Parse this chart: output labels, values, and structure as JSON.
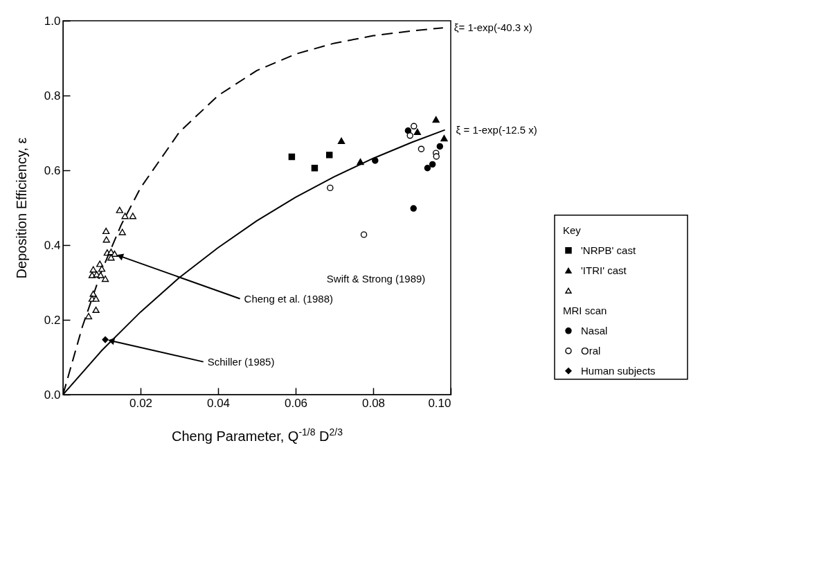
{
  "chart_data": {
    "type": "scatter",
    "xlabel": "Cheng Parameter,  Q$^{-1/8}$  D$^{2/3}$",
    "ylabel": "Deposition  Efficiency, ε",
    "legend_title": "Key",
    "xlim": [
      0,
      0.1
    ],
    "xticks": [
      0.02,
      0.04,
      0.06,
      0.08,
      {
        "value": 0.1,
        "label": "0.10"
      }
    ],
    "ylim": [
      0,
      1.0
    ],
    "yticks": [
      {
        "value": 0,
        "label": "0.0"
      },
      0.2,
      0.4,
      0.6,
      0.8,
      {
        "value": 1.0,
        "label": "1.0"
      }
    ],
    "grid": false,
    "legend": "right",
    "series": [
      {
        "name": "ξ= 1-exp(-40.3 x)",
        "type": "line",
        "color": "#000000",
        "line_style": "dashed",
        "marker": "none",
        "x": [
          0,
          0.005,
          0.01,
          0.015,
          0.02,
          0.03,
          0.04,
          0.05,
          0.06,
          0.07,
          0.08,
          0.09,
          0.098
        ],
        "values": [
          0,
          0.182,
          0.332,
          0.454,
          0.553,
          0.702,
          0.8,
          0.867,
          0.911,
          0.94,
          0.96,
          0.973,
          0.981
        ]
      },
      {
        "name": "ξ = 1-exp(-12.5 x)",
        "type": "line",
        "color": "#000000",
        "line_style": "solid",
        "marker": "none",
        "x": [
          0,
          0.01,
          0.02,
          0.03,
          0.04,
          0.05,
          0.06,
          0.07,
          0.08,
          0.09,
          0.0985
        ],
        "values": [
          0,
          0.118,
          0.221,
          0.313,
          0.393,
          0.465,
          0.528,
          0.583,
          0.632,
          0.675,
          0.708
        ]
      },
      {
        "name": "'NRPB' cast",
        "color": "#000000",
        "marker": "square",
        "x": [
          0.059,
          0.0687,
          0.0649
        ],
        "values": [
          0.636,
          0.641,
          0.606
        ]
      },
      {
        "name": "'ITRI' cast",
        "color": "#000000",
        "marker": "triangle",
        "x": [
          0.0718,
          0.0767,
          0.0962,
          0.0914,
          0.0983
        ],
        "values": [
          0.679,
          0.623,
          0.736,
          0.703,
          0.686
        ]
      },
      {
        "color": "#ffffff",
        "marker": "triangle",
        "x": [
          0.0146,
          0.016,
          0.018,
          0.0111,
          0.0153,
          0.0112,
          0.0114,
          0.0124,
          0.0133,
          0.0124,
          0.0095,
          0.0078,
          0.01,
          0.0075,
          0.0087,
          0.0097,
          0.0109,
          0.0078,
          0.0075,
          0.0085,
          0.0085,
          0.0066
        ],
        "values": [
          0.494,
          0.478,
          0.478,
          0.438,
          0.435,
          0.415,
          0.38,
          0.382,
          0.377,
          0.367,
          0.35,
          0.335,
          0.337,
          0.32,
          0.322,
          0.32,
          0.31,
          0.27,
          0.257,
          0.257,
          0.227,
          0.21
        ]
      },
      {
        "name": "Nasal",
        "color": "#000000",
        "marker": "circle",
        "x": [
          0.0805,
          0.089,
          0.0972,
          0.0953,
          0.094,
          0.0904
        ],
        "values": [
          0.626,
          0.706,
          0.664,
          0.616,
          0.606,
          0.498
        ]
      },
      {
        "name": "Oral",
        "color": "#ffffff",
        "marker": "circle",
        "x": [
          0.0689,
          0.0776,
          0.0905,
          0.0895,
          0.0924,
          0.0962,
          0.0963
        ],
        "values": [
          0.553,
          0.428,
          0.718,
          0.693,
          0.657,
          0.646,
          0.637
        ]
      },
      {
        "name": "Human subjects",
        "color": "#000000",
        "marker": "diamond",
        "x": [
          0.0109
        ],
        "values": [
          0.147
        ]
      }
    ],
    "annotations": [
      "Swift & Strong (1989)",
      "MRI scan",
      {
        "text": "Cheng et al. (1988)",
        "x": 0.0135,
        "y": 0.375
      },
      {
        "text": "Schiller (1985)",
        "x": 0.0112,
        "y": 0.147
      }
    ]
  }
}
